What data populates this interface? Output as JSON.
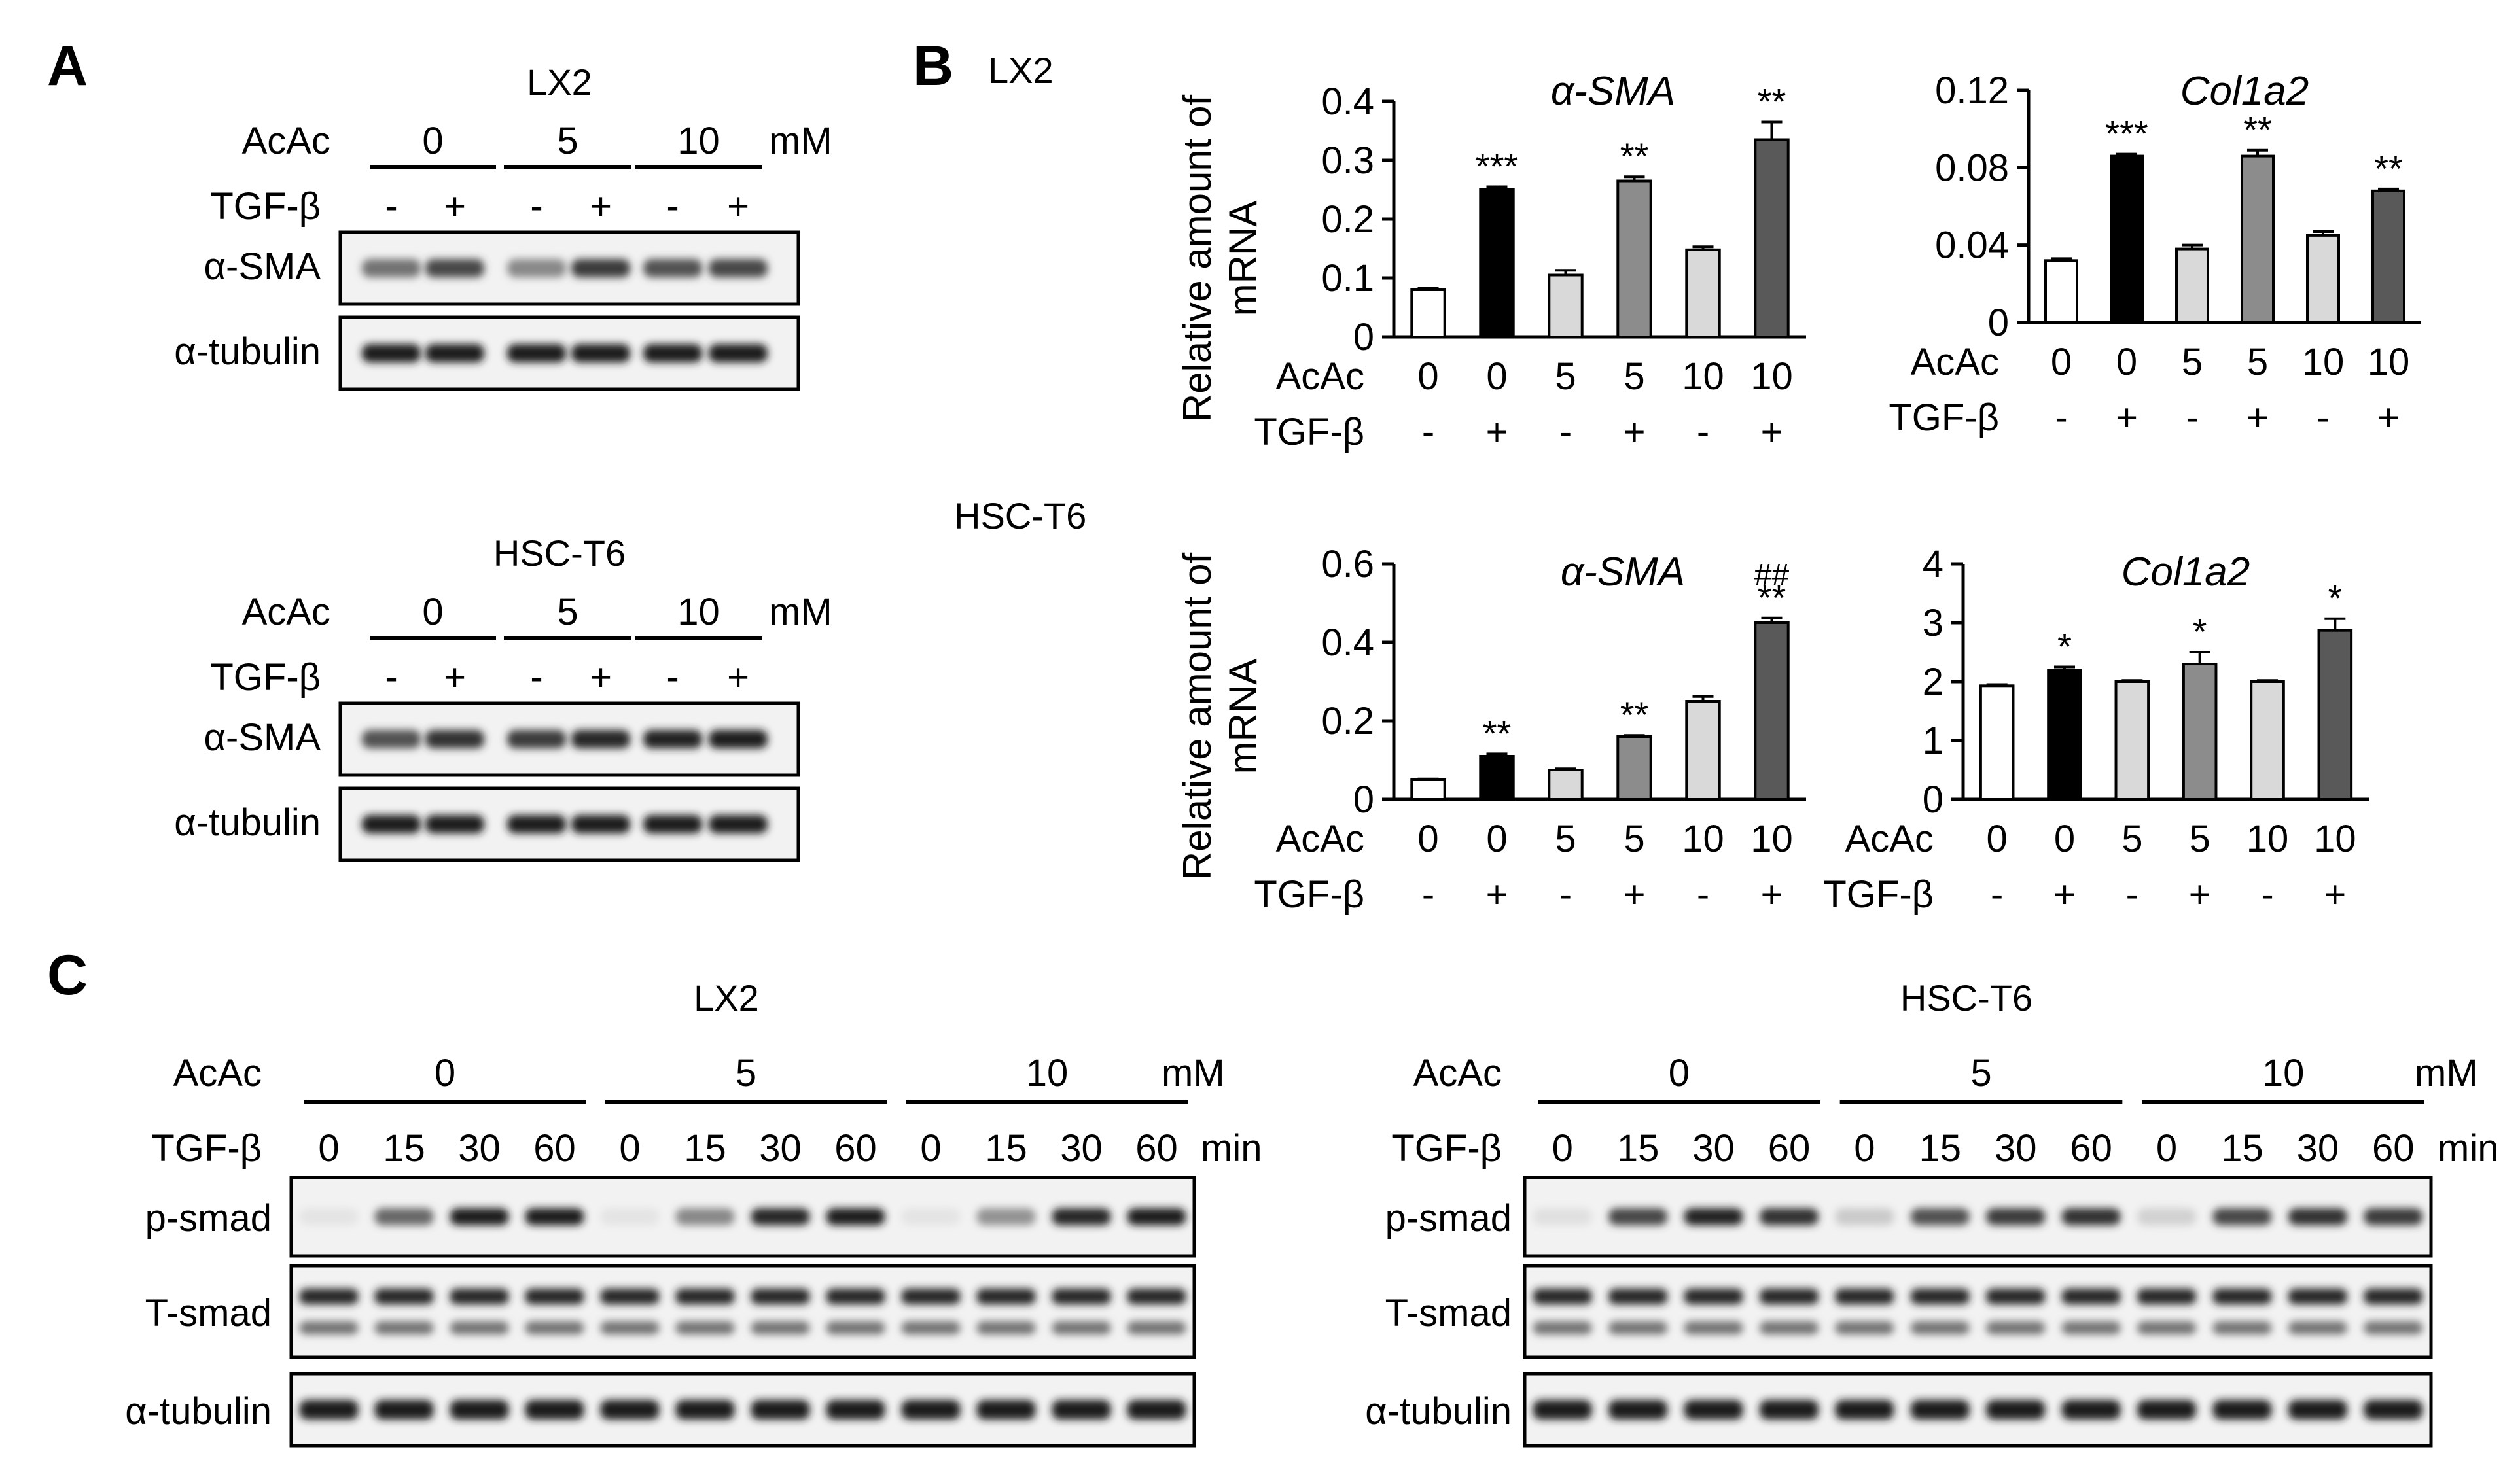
{
  "panel_letters": {
    "a": "A",
    "b": "B",
    "c": "C"
  },
  "panel_a": {
    "blots": [
      {
        "cell_line": "LX2",
        "row_label": "AcAc",
        "unit": "mM",
        "groups": [
          "0",
          "5",
          "10"
        ],
        "treatment_label": "TGF-β",
        "treatments": [
          "-",
          "+",
          "-",
          "+",
          "-",
          "+"
        ],
        "band_labels": [
          "α-SMA",
          "α-tubulin"
        ],
        "band_intensity": [
          [
            0.55,
            0.75,
            0.45,
            0.8,
            0.7,
            0.75
          ],
          [
            0.95,
            0.95,
            0.95,
            0.95,
            0.95,
            0.95
          ]
        ]
      },
      {
        "cell_line": "HSC-T6",
        "row_label": "AcAc",
        "unit": "mM",
        "groups": [
          "0",
          "5",
          "10"
        ],
        "treatment_label": "TGF-β",
        "treatments": [
          "-",
          "+",
          "-",
          "+",
          "-",
          "+"
        ],
        "band_labels": [
          "α-SMA",
          "α-tubulin"
        ],
        "band_intensity": [
          [
            0.7,
            0.85,
            0.8,
            0.9,
            0.92,
            0.95
          ],
          [
            0.95,
            0.95,
            0.95,
            0.95,
            0.95,
            0.95
          ]
        ]
      }
    ]
  },
  "panel_b": {
    "row_labels": [
      "LX2",
      "HSC-T6"
    ],
    "ylabel_lines": [
      "Relative amount of",
      "mRNA"
    ],
    "x_rows": {
      "acac_label": "AcAc",
      "acac": [
        "0",
        "0",
        "5",
        "5",
        "10",
        "10"
      ],
      "tgf_label": "TGF-β",
      "tgf": [
        "-",
        "+",
        "-",
        "+",
        "-",
        "+"
      ]
    }
  },
  "chart_data": [
    {
      "type": "bar",
      "title": "α-SMA",
      "cell_line": "LX2",
      "categories": [
        "0 -",
        "0 +",
        "5 -",
        "5 +",
        "10 -",
        "10 +"
      ],
      "values": [
        0.08,
        0.25,
        0.105,
        0.265,
        0.148,
        0.335
      ],
      "errors": [
        0.003,
        0.005,
        0.008,
        0.007,
        0.005,
        0.03
      ],
      "significance": [
        "",
        "***",
        "",
        "**",
        "",
        "**"
      ],
      "ylim": [
        0,
        0.4
      ],
      "yticks": [
        "0",
        "0.1",
        "0.2",
        "0.3",
        "0.4"
      ],
      "ytick_values": [
        0,
        0.1,
        0.2,
        0.3,
        0.4
      ],
      "colors": [
        "#ffffff",
        "#000000",
        "#d9d9d9",
        "#8c8c8c",
        "#d9d9d9",
        "#595959"
      ]
    },
    {
      "type": "bar",
      "title": "Col1a2",
      "cell_line": "LX2",
      "categories": [
        "0 -",
        "0 +",
        "5 -",
        "5 +",
        "10 -",
        "10 +"
      ],
      "values": [
        0.032,
        0.086,
        0.038,
        0.086,
        0.045,
        0.068
      ],
      "errors": [
        0.001,
        0.001,
        0.002,
        0.003,
        0.002,
        0.001
      ],
      "significance": [
        "",
        "***",
        "",
        "**",
        "",
        "**"
      ],
      "ylim": [
        0,
        0.12
      ],
      "yticks": [
        "0",
        "0.04",
        "0.08",
        "0.12"
      ],
      "ytick_values": [
        0,
        0.04,
        0.08,
        0.12
      ],
      "colors": [
        "#ffffff",
        "#000000",
        "#d9d9d9",
        "#8c8c8c",
        "#d9d9d9",
        "#595959"
      ]
    },
    {
      "type": "bar",
      "title": "α-SMA",
      "cell_line": "HSC-T6",
      "categories": [
        "0 -",
        "0 +",
        "5 -",
        "5 +",
        "10 -",
        "10 +"
      ],
      "values": [
        0.05,
        0.11,
        0.075,
        0.16,
        0.25,
        0.45
      ],
      "errors": [
        0.002,
        0.006,
        0.003,
        0.003,
        0.012,
        0.012
      ],
      "significance": [
        "",
        "**",
        "",
        "**",
        "",
        "**"
      ],
      "significance_extra": [
        "",
        "",
        "",
        "",
        "",
        "##"
      ],
      "ylim": [
        0,
        0.6
      ],
      "yticks": [
        "0",
        "0.2",
        "0.4",
        "0.6"
      ],
      "ytick_values": [
        0,
        0.2,
        0.4,
        0.6
      ],
      "colors": [
        "#ffffff",
        "#000000",
        "#d9d9d9",
        "#8c8c8c",
        "#d9d9d9",
        "#595959"
      ]
    },
    {
      "type": "bar",
      "title": "Col1a2",
      "cell_line": "HSC-T6",
      "categories": [
        "0 -",
        "0 +",
        "5 -",
        "5 +",
        "10 -",
        "10 +"
      ],
      "values": [
        1.93,
        2.2,
        2.0,
        2.3,
        2.0,
        2.87
      ],
      "errors": [
        0.02,
        0.05,
        0.02,
        0.2,
        0.02,
        0.2
      ],
      "significance": [
        "",
        "*",
        "",
        "*",
        "",
        "*"
      ],
      "ylim": [
        0,
        4
      ],
      "yticks": [
        "0",
        "1",
        "2",
        "3",
        "4"
      ],
      "ytick_values": [
        0,
        1,
        2,
        3,
        4
      ],
      "colors": [
        "#ffffff",
        "#000000",
        "#d9d9d9",
        "#8c8c8c",
        "#d9d9d9",
        "#595959"
      ]
    }
  ],
  "panel_c": {
    "blots": [
      {
        "cell_line": "LX2",
        "row_label": "AcAc",
        "unit": "mM",
        "groups": [
          "0",
          "5",
          "10"
        ],
        "time_label": "TGF-β",
        "time_unit": "min",
        "times": [
          "0",
          "15",
          "30",
          "60",
          "0",
          "15",
          "30",
          "60",
          "0",
          "15",
          "30",
          "60"
        ],
        "band_labels": [
          "p-smad",
          "T-smad",
          "α-tubulin"
        ],
        "psmad_intensity": [
          0.03,
          0.6,
          0.95,
          0.95,
          0.03,
          0.45,
          0.9,
          0.95,
          0.03,
          0.4,
          0.9,
          0.95
        ]
      },
      {
        "cell_line": "HSC-T6",
        "row_label": "AcAc",
        "unit": "mM",
        "groups": [
          "0",
          "5",
          "10"
        ],
        "time_label": "TGF-β",
        "time_unit": "min",
        "times": [
          "0",
          "15",
          "30",
          "60",
          "0",
          "15",
          "30",
          "60",
          "0",
          "15",
          "30",
          "60"
        ],
        "band_labels": [
          "p-smad",
          "T-smad",
          "α-tubulin"
        ],
        "psmad_intensity": [
          0.05,
          0.75,
          0.92,
          0.85,
          0.15,
          0.7,
          0.8,
          0.85,
          0.12,
          0.75,
          0.85,
          0.8
        ]
      }
    ]
  }
}
